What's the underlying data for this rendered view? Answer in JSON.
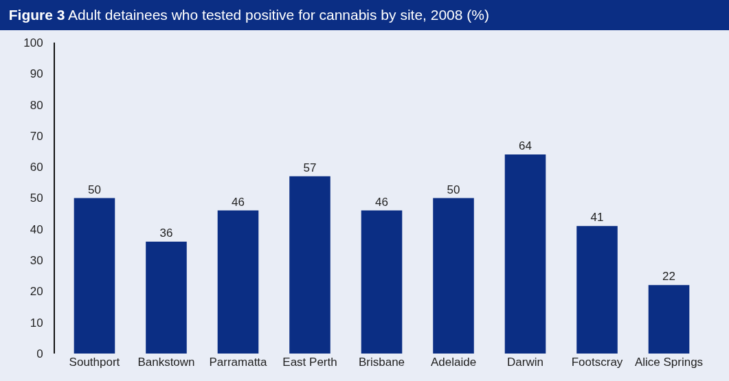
{
  "chart_data": {
    "type": "bar",
    "title": "Figure 3",
    "subtitle": "Adult detainees who tested positive for cannabis by site, 2008 (%)",
    "categories": [
      "Southport",
      "Bankstown",
      "Parramatta",
      "East Perth",
      "Brisbane",
      "Adelaide",
      "Darwin",
      "Footscray",
      "Alice Springs"
    ],
    "values": [
      50,
      36,
      46,
      57,
      46,
      50,
      64,
      41,
      22
    ],
    "color": "#0b2e84",
    "ylim": [
      0,
      100
    ],
    "yticks": [
      0,
      10,
      20,
      30,
      40,
      50,
      60,
      70,
      80,
      90,
      100
    ],
    "data_labels": true,
    "grid": false,
    "legend": false
  }
}
